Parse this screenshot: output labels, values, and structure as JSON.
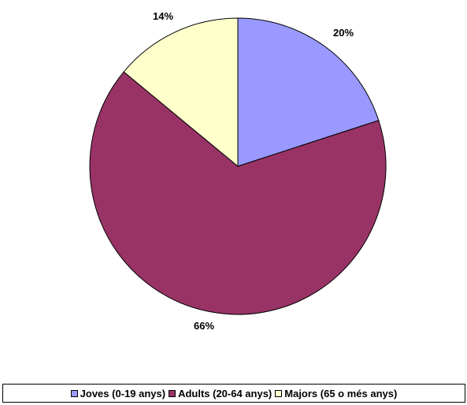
{
  "chart_data": {
    "type": "pie",
    "title": "",
    "categories": [
      "Joves (0-19 anys)",
      "Adults (20-64 anys)",
      "Majors (65 o més anys)"
    ],
    "values": [
      20,
      66,
      14
    ],
    "labels": [
      "20%",
      "66%",
      "14%"
    ],
    "colors": [
      "#9999FF",
      "#993366",
      "#FFFFCC"
    ],
    "legend_position": "bottom"
  }
}
